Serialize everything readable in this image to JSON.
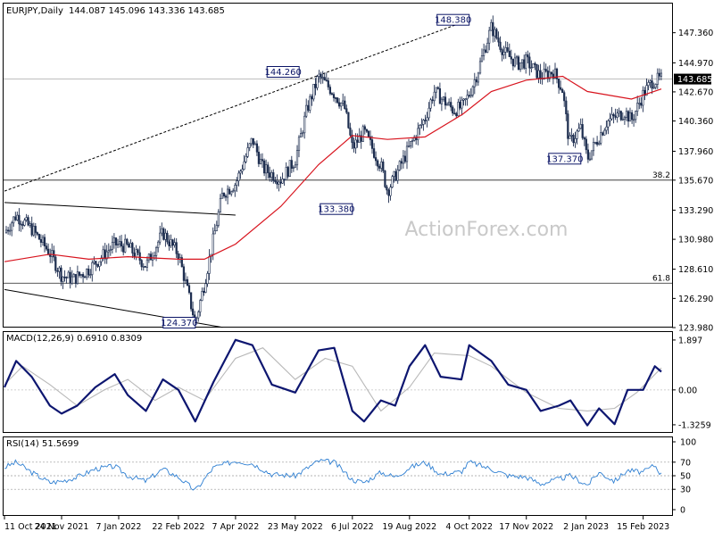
{
  "header": {
    "symbol": "EURJPY",
    "period": ",Daily",
    "ohlc": "144.087 145.096 143.336 143.685"
  },
  "watermark": "ActionForex.com",
  "colors": {
    "price": "#1d2d4f",
    "sma": "#d8141e",
    "macd": "#0d1670",
    "macd_signal": "#b8b8b8",
    "rsi": "#2e7fd2",
    "grid": "#c8c8c8",
    "last_price_bg": "#000000",
    "label_border": "#0b1566"
  },
  "chart_data": [
    {
      "type": "candlestick",
      "title": "EURJPY,Daily",
      "ylim": [
        123.98,
        149.6
      ],
      "y_ticks": [
        "147.360",
        "144.970",
        "143.685",
        "142.670",
        "140.360",
        "137.960",
        "135.670",
        "133.290",
        "130.980",
        "128.610",
        "126.290",
        "123.980"
      ],
      "last_price": "143.685",
      "x_ticks": [
        "11 Oct 2021",
        "24 Nov 2021",
        "7 Jan 2022",
        "22 Feb 2022",
        "7 Apr 2022",
        "23 May 2022",
        "6 Jul 2022",
        "19 Aug 2022",
        "4 Oct 2022",
        "17 Nov 2022",
        "2 Jan 2023",
        "15 Feb 2023"
      ],
      "series": [
        {
          "name": "close",
          "x": [
            "2021-10-11",
            "2021-10-20",
            "2021-11-01",
            "2021-11-15",
            "2021-11-24",
            "2021-12-03",
            "2021-12-15",
            "2022-01-04",
            "2022-01-14",
            "2022-01-28",
            "2022-02-10",
            "2022-02-22",
            "2022-03-07",
            "2022-03-14",
            "2022-03-28",
            "2022-04-07",
            "2022-04-20",
            "2022-04-28",
            "2022-05-12",
            "2022-05-23",
            "2022-06-01",
            "2022-06-10",
            "2022-06-20",
            "2022-06-30",
            "2022-07-06",
            "2022-07-15",
            "2022-07-28",
            "2022-08-02",
            "2022-08-10",
            "2022-08-19",
            "2022-08-31",
            "2022-09-07",
            "2022-09-22",
            "2022-09-29",
            "2022-10-04",
            "2022-10-10",
            "2022-10-21",
            "2022-10-31",
            "2022-11-10",
            "2022-11-17",
            "2022-11-28",
            "2022-12-08",
            "2022-12-15",
            "2022-12-20",
            "2022-12-29",
            "2023-01-03",
            "2023-01-18",
            "2023-02-01",
            "2023-02-06",
            "2023-02-15",
            "2023-02-22",
            "2023-03-01"
          ],
          "values": [
            131.5,
            132.9,
            131.8,
            129.9,
            128.1,
            127.8,
            128.6,
            130.6,
            130.4,
            128.9,
            131.5,
            129.8,
            124.37,
            127.5,
            134.6,
            135.4,
            138.9,
            136.6,
            135.7,
            137.3,
            141.3,
            143.9,
            142.8,
            141.4,
            138.2,
            139.5,
            136.8,
            134.8,
            136.4,
            138.3,
            140.6,
            142.7,
            141.2,
            141.5,
            142.5,
            144.1,
            147.8,
            145.8,
            144.9,
            145.1,
            143.9,
            144.3,
            142.8,
            138.6,
            139.8,
            137.37,
            140.3,
            141.1,
            140.4,
            142.5,
            143.5,
            143.685
          ]
        },
        {
          "name": "moving average",
          "x": [
            "2021-10-11",
            "2021-11-15",
            "2021-12-15",
            "2022-01-14",
            "2022-02-22",
            "2022-03-14",
            "2022-04-07",
            "2022-05-12",
            "2022-06-10",
            "2022-07-06",
            "2022-08-02",
            "2022-08-31",
            "2022-09-29",
            "2022-10-21",
            "2022-11-17",
            "2022-12-15",
            "2023-01-03",
            "2023-02-06",
            "2023-03-01"
          ],
          "values": [
            129.2,
            129.8,
            129.4,
            129.6,
            129.4,
            129.4,
            130.6,
            133.6,
            136.9,
            139.2,
            138.9,
            139.1,
            140.9,
            142.7,
            143.6,
            143.9,
            142.7,
            142.1,
            142.9
          ]
        }
      ],
      "annotations": [
        {
          "text": "148.380",
          "x": "2022-10-04",
          "y": 148.38
        },
        {
          "text": "144.260",
          "x": "2022-05-26",
          "y": 144.26
        },
        {
          "text": "133.380",
          "x": "2022-07-06",
          "y": 133.38
        },
        {
          "text": "137.370",
          "x": "2022-12-29",
          "y": 137.37
        },
        {
          "text": "124.370",
          "x": "2022-03-07",
          "y": 124.37
        }
      ],
      "levels": [
        {
          "label": "38.2",
          "y": 135.67
        },
        {
          "label": "61.8",
          "y": 127.5
        },
        {
          "label": "",
          "y": 143.685
        }
      ],
      "trendlines": [
        {
          "style": "dashed",
          "from": {
            "x": "2021-10-11",
            "y": 134.8
          },
          "to": {
            "x": "2022-10-04",
            "y": 148.38
          }
        },
        {
          "style": "solid",
          "from": {
            "x": "2021-10-11",
            "y": 133.9
          },
          "to": {
            "x": "2022-04-07",
            "y": 132.9
          }
        },
        {
          "style": "solid",
          "from": {
            "x": "2021-10-11",
            "y": 127.0
          },
          "to": {
            "x": "2022-03-28",
            "y": 124.0
          }
        }
      ]
    },
    {
      "type": "line",
      "title": "MACD(12,26,9) 0.6910 0.8309",
      "ylim": [
        -1.6,
        2.2
      ],
      "y_ticks": [
        "1.897",
        "0.00",
        "-1.3259"
      ],
      "series": [
        {
          "name": "MACD",
          "x": [
            "2021-10-11",
            "2021-10-20",
            "2021-11-01",
            "2021-11-15",
            "2021-11-24",
            "2021-12-06",
            "2021-12-20",
            "2022-01-04",
            "2022-01-14",
            "2022-01-28",
            "2022-02-10",
            "2022-02-22",
            "2022-03-07",
            "2022-03-21",
            "2022-04-07",
            "2022-04-20",
            "2022-05-05",
            "2022-05-23",
            "2022-06-10",
            "2022-06-22",
            "2022-07-06",
            "2022-07-15",
            "2022-07-28",
            "2022-08-08",
            "2022-08-19",
            "2022-08-31",
            "2022-09-12",
            "2022-09-28",
            "2022-10-04",
            "2022-10-21",
            "2022-11-03",
            "2022-11-17",
            "2022-11-28",
            "2022-12-12",
            "2022-12-21",
            "2023-01-03",
            "2023-01-12",
            "2023-01-24",
            "2023-02-03",
            "2023-02-15",
            "2023-02-24",
            "2023-03-01"
          ],
          "values": [
            0.1,
            1.1,
            0.5,
            -0.6,
            -0.9,
            -0.6,
            0.1,
            0.6,
            -0.2,
            -0.8,
            0.4,
            0.0,
            -1.2,
            0.3,
            1.9,
            1.7,
            0.2,
            -0.1,
            1.5,
            1.6,
            -0.8,
            -1.2,
            -0.4,
            -0.6,
            0.9,
            1.7,
            0.5,
            0.4,
            1.7,
            1.1,
            0.2,
            0.0,
            -0.8,
            -0.6,
            -0.4,
            -1.35,
            -0.7,
            -1.3,
            0.0,
            0.0,
            0.9,
            0.691
          ]
        },
        {
          "name": "Signal",
          "x": [
            "2021-10-11",
            "2021-10-25",
            "2021-11-15",
            "2021-12-06",
            "2021-12-27",
            "2022-01-14",
            "2022-02-04",
            "2022-02-22",
            "2022-03-14",
            "2022-04-07",
            "2022-04-28",
            "2022-05-23",
            "2022-06-15",
            "2022-07-06",
            "2022-07-28",
            "2022-08-19",
            "2022-09-07",
            "2022-10-04",
            "2022-10-21",
            "2022-11-17",
            "2022-12-12",
            "2023-01-03",
            "2023-01-24",
            "2023-02-10",
            "2023-03-01"
          ],
          "values": [
            0.2,
            0.9,
            0.2,
            -0.6,
            0.0,
            0.4,
            -0.4,
            0.1,
            -0.4,
            1.2,
            1.6,
            0.4,
            1.2,
            0.9,
            -0.8,
            0.1,
            1.4,
            1.3,
            0.9,
            -0.1,
            -0.7,
            -0.8,
            -0.7,
            -0.1,
            0.831
          ]
        }
      ]
    },
    {
      "type": "line",
      "title": "RSI(14) 51.5699",
      "ylim": [
        0,
        100
      ],
      "y_ticks": [
        "100",
        "70",
        "50",
        "30",
        "0"
      ],
      "reference_lines": [
        70,
        50,
        30
      ],
      "series": [
        {
          "name": "RSI",
          "x": [
            "2021-10-11",
            "2021-10-20",
            "2021-11-01",
            "2021-11-15",
            "2021-11-24",
            "2021-12-06",
            "2021-12-20",
            "2022-01-04",
            "2022-01-14",
            "2022-01-28",
            "2022-02-10",
            "2022-02-22",
            "2022-03-07",
            "2022-03-21",
            "2022-04-07",
            "2022-04-20",
            "2022-05-05",
            "2022-05-23",
            "2022-06-10",
            "2022-06-22",
            "2022-07-06",
            "2022-07-15",
            "2022-07-28",
            "2022-08-08",
            "2022-08-19",
            "2022-08-31",
            "2022-09-12",
            "2022-09-28",
            "2022-10-04",
            "2022-10-21",
            "2022-11-03",
            "2022-11-17",
            "2022-11-28",
            "2022-12-12",
            "2022-12-21",
            "2023-01-03",
            "2023-01-12",
            "2023-01-24",
            "2023-02-03",
            "2023-02-15",
            "2023-02-24",
            "2023-03-01"
          ],
          "values": [
            62,
            70,
            55,
            40,
            42,
            48,
            60,
            64,
            50,
            42,
            60,
            48,
            28,
            62,
            72,
            68,
            52,
            50,
            72,
            70,
            44,
            40,
            55,
            48,
            62,
            70,
            52,
            56,
            70,
            60,
            50,
            48,
            38,
            45,
            50,
            36,
            55,
            42,
            58,
            55,
            66,
            51.57
          ]
        }
      ]
    }
  ]
}
